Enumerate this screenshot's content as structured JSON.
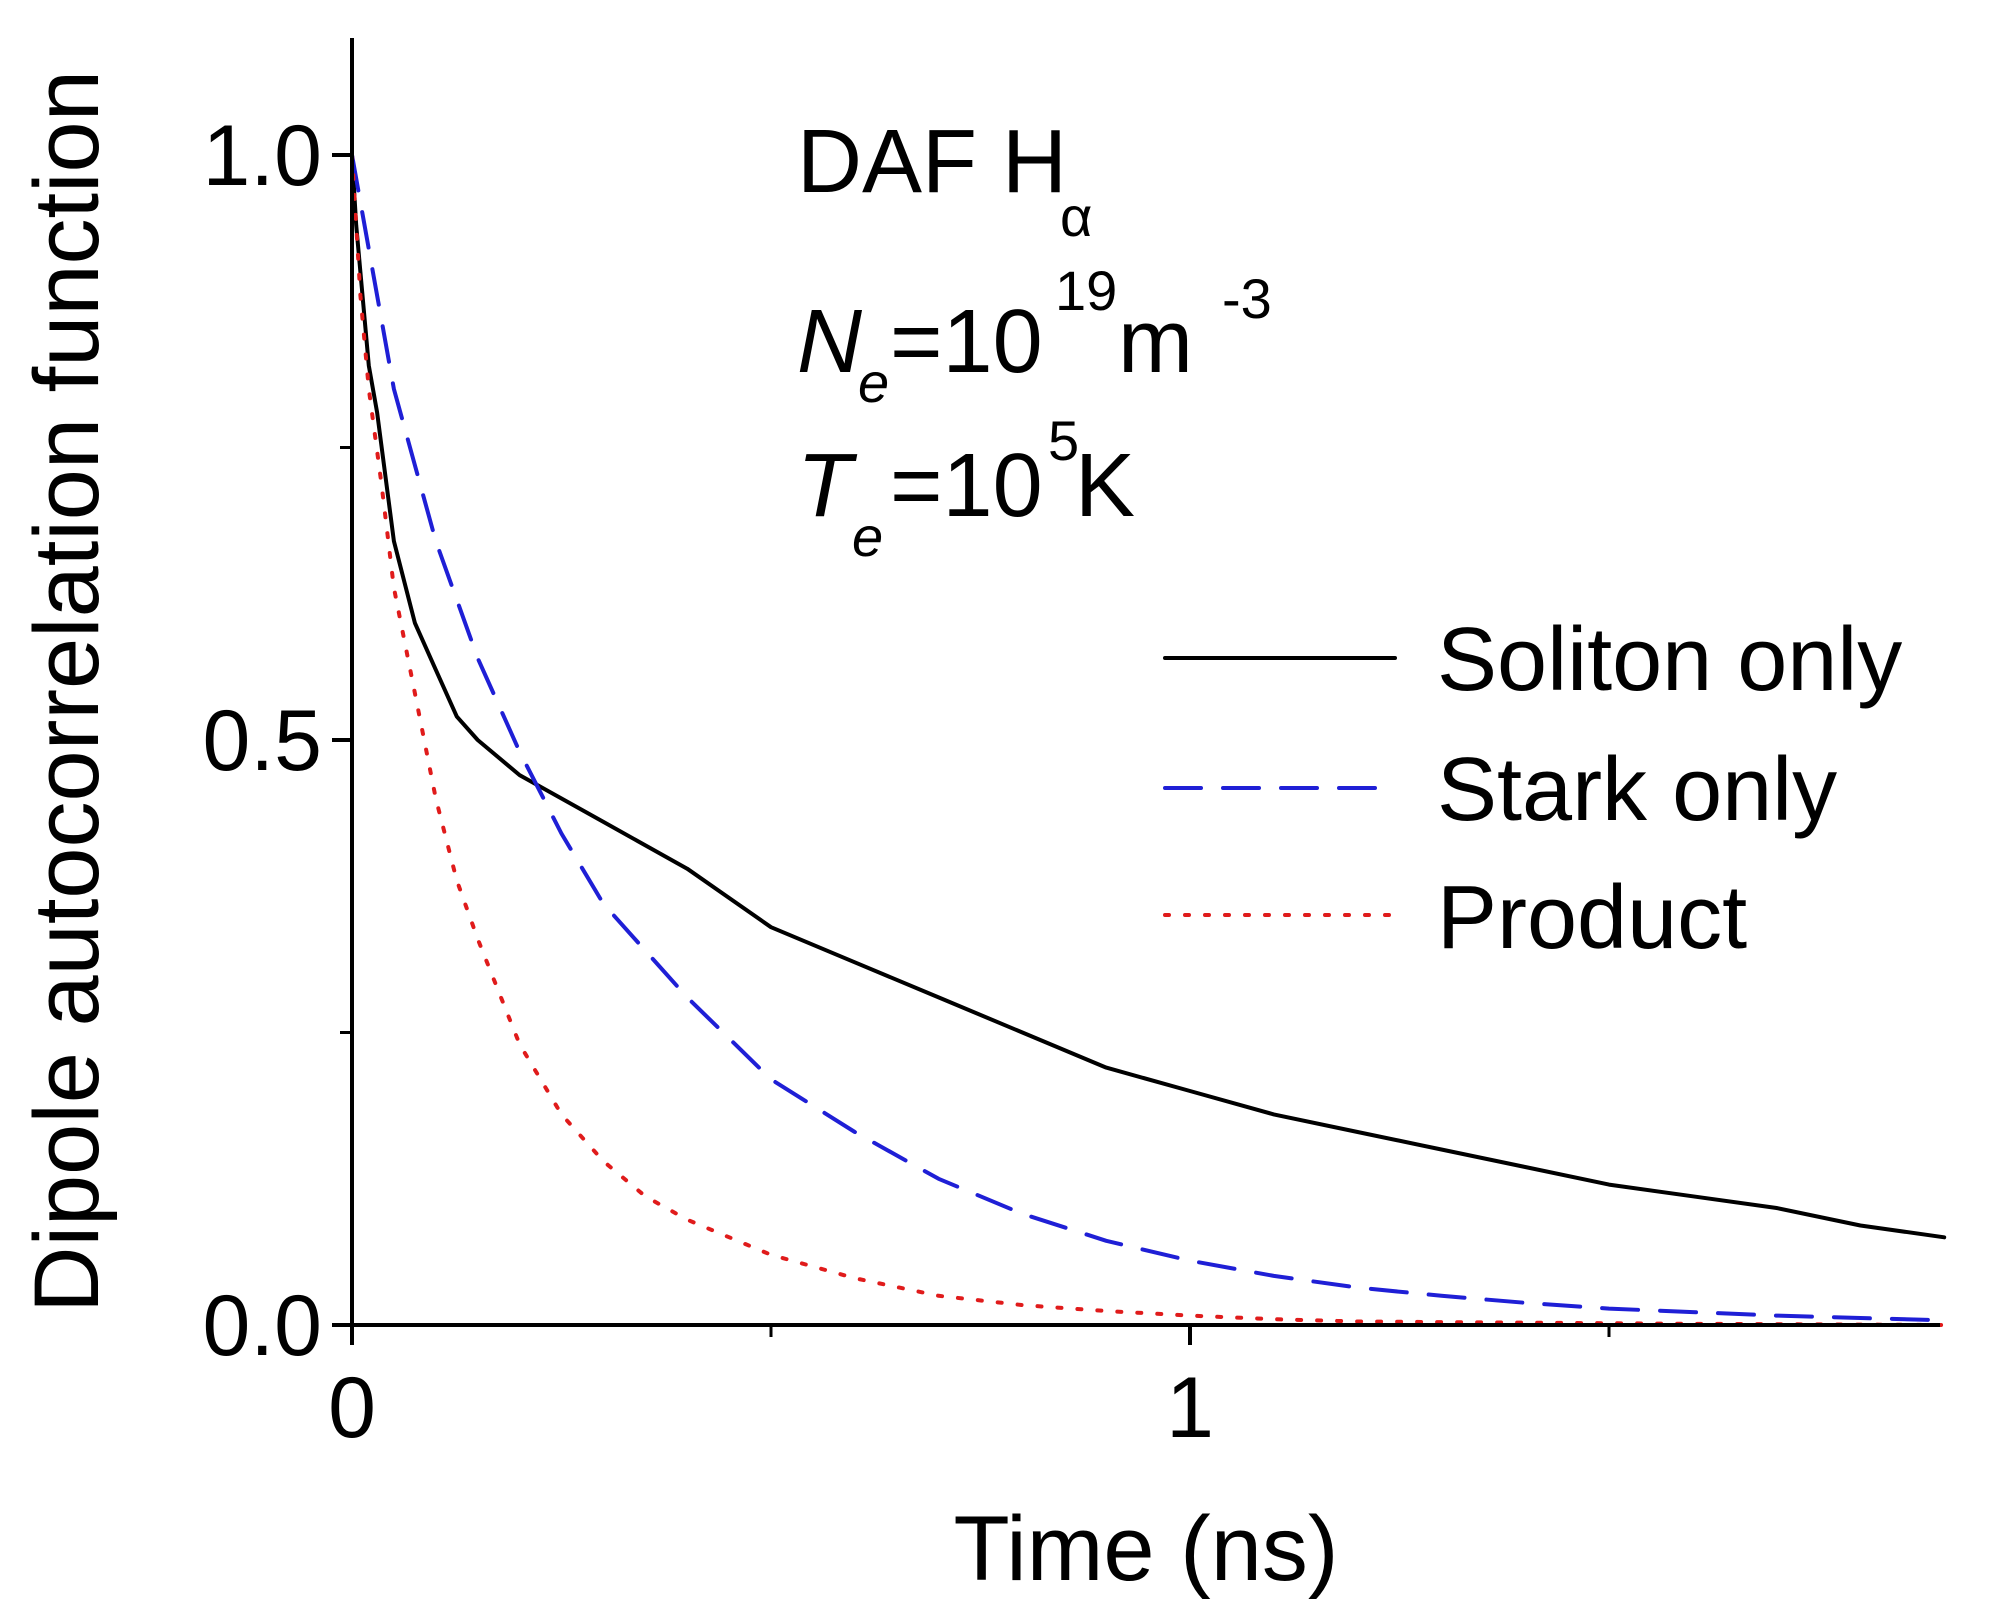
{
  "chart_data": {
    "type": "line",
    "title": "",
    "xlabel": "Time (ns)",
    "ylabel": "Dipole autocorrelation function",
    "xlim": [
      0,
      1.9
    ],
    "ylim": [
      0,
      1.1
    ],
    "x_ticks_major": [
      0,
      1
    ],
    "x_tick_labels": [
      "0",
      "1"
    ],
    "x_ticks_minor": [
      0.5,
      1.5
    ],
    "y_ticks_major": [
      0.0,
      0.5,
      1.0
    ],
    "y_tick_labels": [
      "0.0",
      "0.5",
      "1.0"
    ],
    "y_ticks_minor": [
      0.25,
      0.75
    ],
    "grid": false,
    "legend_position": "center-right",
    "series": [
      {
        "name": "Soliton only",
        "color": "#000000",
        "style": "solid",
        "x": [
          0,
          0.005,
          0.01,
          0.02,
          0.03,
          0.05,
          0.075,
          0.1,
          0.125,
          0.15,
          0.2,
          0.25,
          0.3,
          0.4,
          0.5,
          0.6,
          0.7,
          0.8,
          0.9,
          1.0,
          1.1,
          1.2,
          1.3,
          1.4,
          1.5,
          1.6,
          1.7,
          1.8,
          1.9
        ],
        "y": [
          1.0,
          0.94,
          0.9,
          0.82,
          0.78,
          0.67,
          0.6,
          0.56,
          0.52,
          0.5,
          0.47,
          0.45,
          0.43,
          0.39,
          0.34,
          0.31,
          0.28,
          0.25,
          0.22,
          0.2,
          0.18,
          0.165,
          0.15,
          0.135,
          0.12,
          0.11,
          0.1,
          0.085,
          0.075
        ]
      },
      {
        "name": "Stark only",
        "color": "#1f1fd6",
        "style": "dashed",
        "x": [
          0,
          0.025,
          0.05,
          0.1,
          0.15,
          0.2,
          0.25,
          0.3,
          0.4,
          0.5,
          0.6,
          0.7,
          0.8,
          0.9,
          1.0,
          1.1,
          1.2,
          1.3,
          1.4,
          1.5,
          1.6,
          1.7,
          1.8,
          1.9
        ],
        "y": [
          1.0,
          0.9,
          0.8,
          0.67,
          0.57,
          0.49,
          0.42,
          0.36,
          0.28,
          0.21,
          0.165,
          0.125,
          0.095,
          0.072,
          0.055,
          0.042,
          0.032,
          0.025,
          0.019,
          0.014,
          0.011,
          0.008,
          0.006,
          0.004
        ]
      },
      {
        "name": "Product",
        "color": "#e01b1b",
        "style": "dotted",
        "x": [
          0,
          0.01,
          0.02,
          0.035,
          0.05,
          0.075,
          0.1,
          0.125,
          0.15,
          0.2,
          0.25,
          0.3,
          0.35,
          0.4,
          0.5,
          0.6,
          0.7,
          0.8,
          0.9,
          1.0,
          1.1,
          1.2,
          1.4,
          1.6,
          1.9
        ],
        "y": [
          1.0,
          0.88,
          0.8,
          0.72,
          0.63,
          0.54,
          0.45,
          0.38,
          0.33,
          0.24,
          0.18,
          0.14,
          0.11,
          0.09,
          0.06,
          0.04,
          0.025,
          0.017,
          0.012,
          0.008,
          0.005,
          0.003,
          0.002,
          0.001,
          0.0
        ]
      }
    ],
    "annotations": {
      "line1_main": "DAF H",
      "line1_sub": "α",
      "line2_var": "N",
      "line2_var_sub": "e",
      "line2_eq": "=10",
      "line2_exp": "19",
      "line2_unit": " m",
      "line2_unit_exp": "-3",
      "line3_var": "T",
      "line3_var_sub": "e",
      "line3_eq": "=10",
      "line3_exp": "5",
      "line3_unit": " K"
    }
  }
}
